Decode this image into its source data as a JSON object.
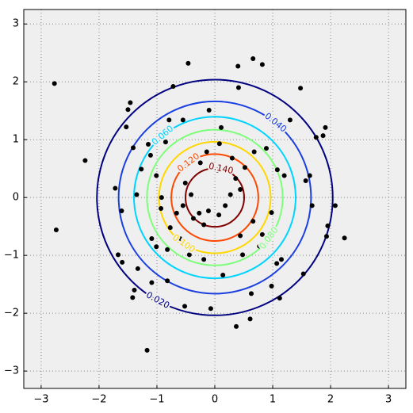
{
  "chart_data": {
    "type": "contour",
    "xlim": [
      -3.3,
      3.3
    ],
    "ylim": [
      -3.3,
      3.25
    ],
    "xticks": [
      {
        "value": -3,
        "label": "−3"
      },
      {
        "value": -2,
        "label": "−2"
      },
      {
        "value": -1,
        "label": "−1"
      },
      0,
      1,
      2,
      3
    ],
    "yticks": [
      {
        "value": -3,
        "label": "−3"
      },
      {
        "value": -2,
        "label": "−2"
      },
      {
        "value": -1,
        "label": "−1"
      },
      0,
      1,
      2,
      3
    ],
    "grid": true,
    "levels": [
      {
        "value": 0.02,
        "label": "0.020",
        "color": "#000080"
      },
      {
        "value": 0.04,
        "label": "0.040",
        "color": "#1a3fe0"
      },
      {
        "value": 0.06,
        "label": "0.060",
        "color": "#00d4ff"
      },
      {
        "value": 0.08,
        "label": "0.080",
        "color": "#7dff7a"
      },
      {
        "value": 0.1,
        "label": "0.100",
        "color": "#ffd700"
      },
      {
        "value": 0.12,
        "label": "0.120",
        "color": "#ff4800"
      },
      {
        "value": 0.14,
        "label": "0.140",
        "color": "#800000"
      }
    ],
    "points": {
      "color": "#000000",
      "x": [
        -2.77,
        -2.74,
        -1.17,
        -0.46,
        0.4,
        0.66,
        0.82,
        -0.72,
        0.41,
        -2.24,
        -1.46,
        -1.5,
        -1.53,
        -1.41,
        -1.72,
        -1.61,
        -1.67,
        -1.6,
        -1.33,
        -1.39,
        -1.42,
        -1.09,
        -0.82,
        -0.52,
        -0.07,
        0.37,
        0.61,
        0.63,
        0.98,
        1.07,
        1.53,
        1.93,
        1.95,
        2.24,
        2.08,
        1.68,
        1.48,
        1.91,
        1.87,
        1.75,
        1.64,
        1.57,
        1.2,
        1.08,
        -1.15,
        -1.11,
        -0.85,
        -1.01,
        -0.92,
        -0.77,
        -0.66,
        -0.55,
        -0.41,
        -0.37,
        -0.27,
        -0.19,
        -0.11,
        0.07,
        0.18,
        0.27,
        0.44,
        0.36,
        0.05,
        -0.14,
        0.08,
        0.3,
        0.52,
        0.68,
        0.11,
        -0.1,
        -0.25,
        -0.51,
        -0.6,
        -0.44,
        -0.19,
        0.14,
        0.48,
        0.77,
        0.82,
        0.98,
        0.66,
        0.44,
        -0.82,
        -0.93,
        -1.35,
        -1.09,
        -1.27,
        -0.55,
        -0.79,
        0.89,
        1.3,
        1.12,
        1.15,
        -1.01
      ],
      "y": [
        1.97,
        -0.56,
        -2.64,
        2.32,
        2.27,
        2.4,
        2.3,
        1.92,
        1.9,
        0.64,
        1.64,
        1.52,
        1.22,
        0.86,
        0.16,
        -0.23,
        -0.99,
        -1.12,
        -1.23,
        -1.6,
        -1.73,
        -1.47,
        -1.44,
        -1.88,
        -1.92,
        -2.23,
        -2.1,
        -1.66,
        -1.53,
        -1.14,
        -1.32,
        -0.67,
        -0.49,
        -0.7,
        -0.14,
        -0.14,
        1.89,
        1.21,
        1.07,
        1.04,
        0.38,
        0.29,
        0.38,
        0.48,
        0.92,
        0.73,
        0.96,
        0.38,
        0.0,
        -0.52,
        -0.27,
        -0.14,
        0.05,
        -0.36,
        -0.27,
        -0.47,
        -0.23,
        -0.3,
        -0.14,
        0.05,
        0.14,
        0.33,
        0.47,
        0.79,
        0.93,
        0.68,
        0.52,
        0.79,
        1.21,
        1.51,
        0.6,
        0.25,
        -0.71,
        -0.99,
        -1.07,
        -1.34,
        -0.99,
        -0.84,
        -0.64,
        -0.26,
        -0.41,
        -0.66,
        -0.9,
        -0.19,
        0.05,
        -0.71,
        0.49,
        1.34,
        1.34,
        0.85,
        1.34,
        -1.74,
        -1.07,
        -0.85
      ]
    }
  }
}
